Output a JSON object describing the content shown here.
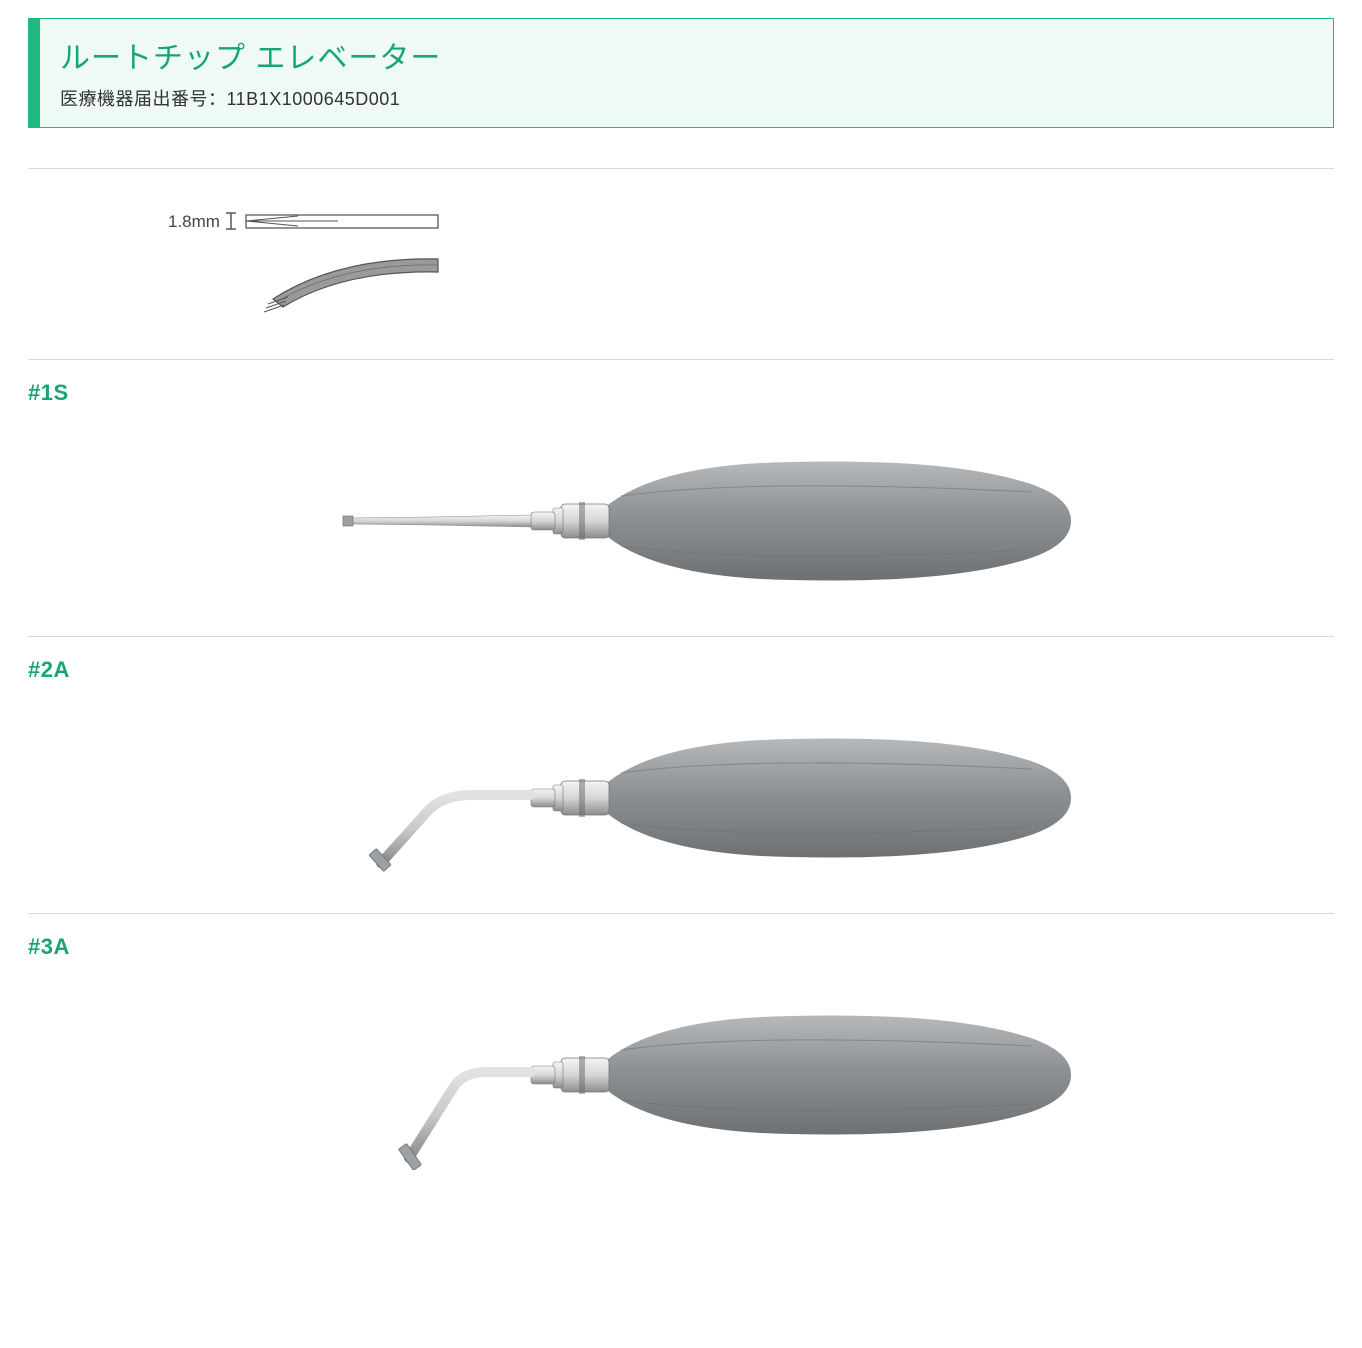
{
  "theme": {
    "accent": "#17a673",
    "border": "#1db981",
    "header_bg": "#f0faf5",
    "section_divider": "#d9d9d9",
    "label_color": "#17a673"
  },
  "header": {
    "title": "ルートチップ エレベーター",
    "subtitle": "医療機器届出番号：11B1X1000645D001"
  },
  "tip_diagram": {
    "measurement_label": "1.8mm",
    "tip_color": "#8f8f8f",
    "outline_color": "#555555"
  },
  "instruments": [
    {
      "code": "#1S",
      "tip_shape": "straight",
      "handle_color": "#8e9193",
      "handle_hi": "#b6b9bb",
      "handle_lo": "#6e7173",
      "shaft_color": "#d4d6d8",
      "shaft_hi": "#f2f4f6",
      "shaft_lo": "#8a8c8e"
    },
    {
      "code": "#2A",
      "tip_shape": "angle-down",
      "handle_color": "#8e9193",
      "handle_hi": "#b6b9bb",
      "handle_lo": "#6e7173",
      "shaft_color": "#d4d6d8",
      "shaft_hi": "#f2f4f6",
      "shaft_lo": "#8a8c8e"
    },
    {
      "code": "#3A",
      "tip_shape": "angle-down-long",
      "handle_color": "#8e9193",
      "handle_hi": "#b6b9bb",
      "handle_lo": "#6e7173",
      "shaft_color": "#d4d6d8",
      "shaft_hi": "#f2f4f6",
      "shaft_lo": "#8a8c8e"
    }
  ]
}
